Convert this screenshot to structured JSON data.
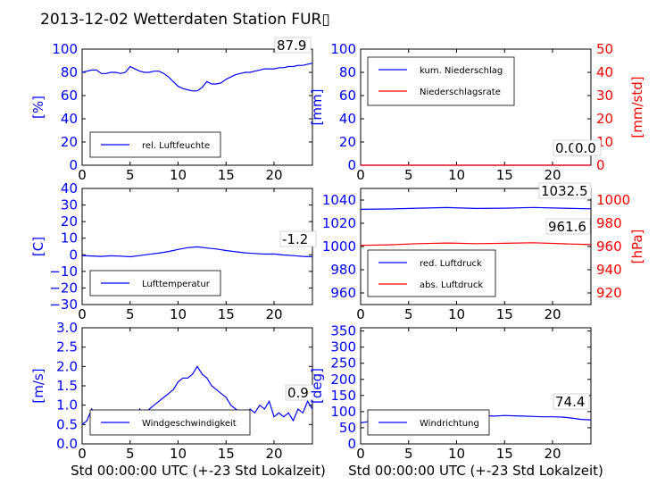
{
  "figure_title": "2013-12-02 Wetterdaten Station FUR▯",
  "colors": {
    "blue": "#0000ff",
    "red": "#ff0000",
    "black": "#000000"
  },
  "chart_data": [
    {
      "id": "humidity",
      "type": "line",
      "ylabel": "[%]",
      "xlim": [
        0,
        24
      ],
      "ylim": [
        0,
        100
      ],
      "xticks": [
        "0",
        "5",
        "10",
        "15",
        "20"
      ],
      "yticks": [
        "0",
        "20",
        "40",
        "60",
        "80",
        "100"
      ],
      "last_value_label": "87.9",
      "series": [
        {
          "name": "rel. Luftfeuchte",
          "color": "blue",
          "x": [
            0,
            0.5,
            1,
            1.5,
            2,
            2.5,
            3,
            3.5,
            4,
            4.5,
            5,
            5.5,
            6,
            6.5,
            7,
            7.5,
            8,
            8.5,
            9,
            9.5,
            10,
            10.5,
            11,
            11.5,
            12,
            12.5,
            13,
            13.5,
            14,
            14.5,
            15,
            15.5,
            16,
            16.5,
            17,
            17.5,
            18,
            18.5,
            19,
            19.5,
            20,
            20.5,
            21,
            21.5,
            22,
            22.5,
            23,
            23.5,
            24
          ],
          "y": [
            80,
            81,
            82,
            82,
            79,
            79,
            80,
            80,
            79,
            80,
            85,
            83,
            81,
            80,
            80,
            81,
            81,
            79,
            76,
            72,
            68,
            66,
            65,
            64,
            64,
            67,
            72,
            70,
            70,
            71,
            74,
            76,
            78,
            79,
            80,
            80,
            81,
            82,
            83,
            83,
            83,
            84,
            84,
            85,
            85,
            86,
            86,
            87,
            87.9
          ]
        }
      ]
    },
    {
      "id": "precipitation",
      "type": "line",
      "ylabel": "[mm]",
      "ylabel_right": "[mm/std]",
      "xlim": [
        0,
        24
      ],
      "ylim": [
        0,
        100
      ],
      "ylim_right": [
        0,
        50
      ],
      "xticks": [
        "0",
        "5",
        "10",
        "15",
        "20"
      ],
      "yticks": [
        "0",
        "20",
        "40",
        "60",
        "80",
        "100"
      ],
      "yticks_right": [
        "0",
        "10",
        "20",
        "30",
        "40",
        "50"
      ],
      "last_value_label": "0.0",
      "last_value_label_2": "0.0",
      "series": [
        {
          "name": "kum. Niederschlag",
          "color": "blue",
          "x": [
            0,
            24
          ],
          "y": [
            0,
            0
          ]
        },
        {
          "name": "Niederschlagsrate",
          "color": "red",
          "axis": "right",
          "x": [
            0,
            24
          ],
          "y": [
            0,
            0
          ]
        }
      ]
    },
    {
      "id": "temperature",
      "type": "line",
      "ylabel": "[C]",
      "xlim": [
        0,
        24
      ],
      "ylim": [
        -30,
        40
      ],
      "xticks": [
        "0",
        "5",
        "10",
        "15",
        "20"
      ],
      "yticks": [
        "−30",
        "−20",
        "−10",
        "0",
        "10",
        "20",
        "30",
        "40"
      ],
      "last_value_label": "-1.2",
      "series": [
        {
          "name": "Lufttemperatur",
          "color": "blue",
          "x": [
            0,
            1,
            2,
            3,
            4,
            5,
            6,
            7,
            8,
            9,
            10,
            11,
            12,
            13,
            14,
            15,
            16,
            17,
            18,
            19,
            20,
            21,
            22,
            23,
            24
          ],
          "y": [
            -0.5,
            -0.7,
            -1.0,
            -0.6,
            -0.8,
            -1.2,
            -0.5,
            0.3,
            1.0,
            2.0,
            3.2,
            4.3,
            4.8,
            4.1,
            3.5,
            2.6,
            1.8,
            1.2,
            0.8,
            0.4,
            0.5,
            -0.1,
            -0.5,
            -1.0,
            -1.2
          ]
        }
      ]
    },
    {
      "id": "pressure",
      "type": "line",
      "xlim": [
        0,
        24
      ],
      "ylim": [
        950,
        1050
      ],
      "ylabel_right": "[hPa]",
      "ylim_right": [
        910,
        1010
      ],
      "xticks": [
        "0",
        "5",
        "10",
        "15",
        "20"
      ],
      "yticks": [
        "960",
        "980",
        "1000",
        "1020",
        "1040"
      ],
      "yticks_right": [
        "920",
        "940",
        "960",
        "980",
        "1000"
      ],
      "last_value_label": "1032.5",
      "last_value_label_2": "961.6",
      "series": [
        {
          "name": "red. Luftdruck",
          "color": "blue",
          "x": [
            0,
            3,
            6,
            9,
            12,
            15,
            18,
            21,
            24
          ],
          "y": [
            1032.0,
            1032.3,
            1033.0,
            1033.5,
            1032.8,
            1033.0,
            1033.6,
            1033.0,
            1032.5
          ]
        },
        {
          "name": "abs. Luftdruck",
          "color": "red",
          "axis": "right",
          "x": [
            0,
            3,
            6,
            9,
            12,
            15,
            18,
            21,
            24
          ],
          "y": [
            961.0,
            961.5,
            962.5,
            963.0,
            962.5,
            962.8,
            963.2,
            962.4,
            961.6
          ]
        }
      ]
    },
    {
      "id": "wind_speed",
      "type": "line",
      "ylabel": "[m/s]",
      "xlim": [
        0,
        24
      ],
      "ylim": [
        0,
        3
      ],
      "xticks": [
        "0",
        "5",
        "10",
        "15",
        "20"
      ],
      "yticks": [
        "0.0",
        "0.5",
        "1.0",
        "1.5",
        "2.0",
        "2.5",
        "3.0"
      ],
      "last_value_label": "0.9",
      "series": [
        {
          "name": "Windgeschwindigkeit",
          "color": "blue",
          "x": [
            0,
            0.5,
            1,
            1.5,
            2,
            2.5,
            3,
            3.5,
            4,
            4.5,
            5,
            5.5,
            6,
            6.5,
            7,
            7.5,
            8,
            8.5,
            9,
            9.5,
            10,
            10.5,
            11,
            11.5,
            12,
            12.5,
            13,
            13.5,
            14,
            14.5,
            15,
            15.5,
            16,
            16.5,
            17,
            17.5,
            18,
            18.5,
            19,
            19.5,
            20,
            20.5,
            21,
            21.5,
            22,
            22.5,
            23,
            23.5,
            24
          ],
          "y": [
            0.5,
            0.6,
            0.9,
            0.7,
            0.6,
            0.8,
            0.7,
            0.6,
            0.5,
            0.7,
            0.8,
            0.6,
            0.9,
            0.7,
            0.9,
            1.0,
            1.1,
            1.2,
            1.3,
            1.4,
            1.6,
            1.7,
            1.7,
            1.8,
            2.0,
            1.8,
            1.7,
            1.5,
            1.4,
            1.3,
            1.2,
            1.0,
            0.9,
            0.8,
            0.7,
            0.9,
            0.8,
            1.0,
            0.9,
            1.1,
            0.7,
            0.8,
            0.7,
            0.8,
            0.6,
            0.9,
            0.8,
            1.1,
            0.9
          ]
        }
      ]
    },
    {
      "id": "wind_direction",
      "type": "line",
      "ylabel": "[deg]",
      "xlim": [
        0,
        24
      ],
      "ylim": [
        0,
        360
      ],
      "xticks": [
        "0",
        "5",
        "10",
        "15",
        "20"
      ],
      "yticks": [
        "0",
        "50",
        "100",
        "150",
        "200",
        "250",
        "300",
        "350"
      ],
      "last_value_label": "74.4",
      "series": [
        {
          "name": "Windrichtung",
          "color": "blue",
          "x": [
            0,
            1,
            2,
            3,
            4,
            5,
            6,
            7,
            8,
            9,
            10,
            11,
            12,
            13,
            14,
            15,
            16,
            17,
            18,
            19,
            20,
            21,
            22,
            23,
            24
          ],
          "y": [
            65,
            70,
            78,
            85,
            80,
            75,
            78,
            82,
            86,
            88,
            90,
            89,
            88,
            87,
            86,
            88,
            87,
            86,
            85,
            84,
            84,
            83,
            80,
            76,
            74.4
          ]
        }
      ]
    }
  ],
  "xlabel_bottom": "Std 00:00:00 UTC (+-23 Std Lokalzeit)"
}
